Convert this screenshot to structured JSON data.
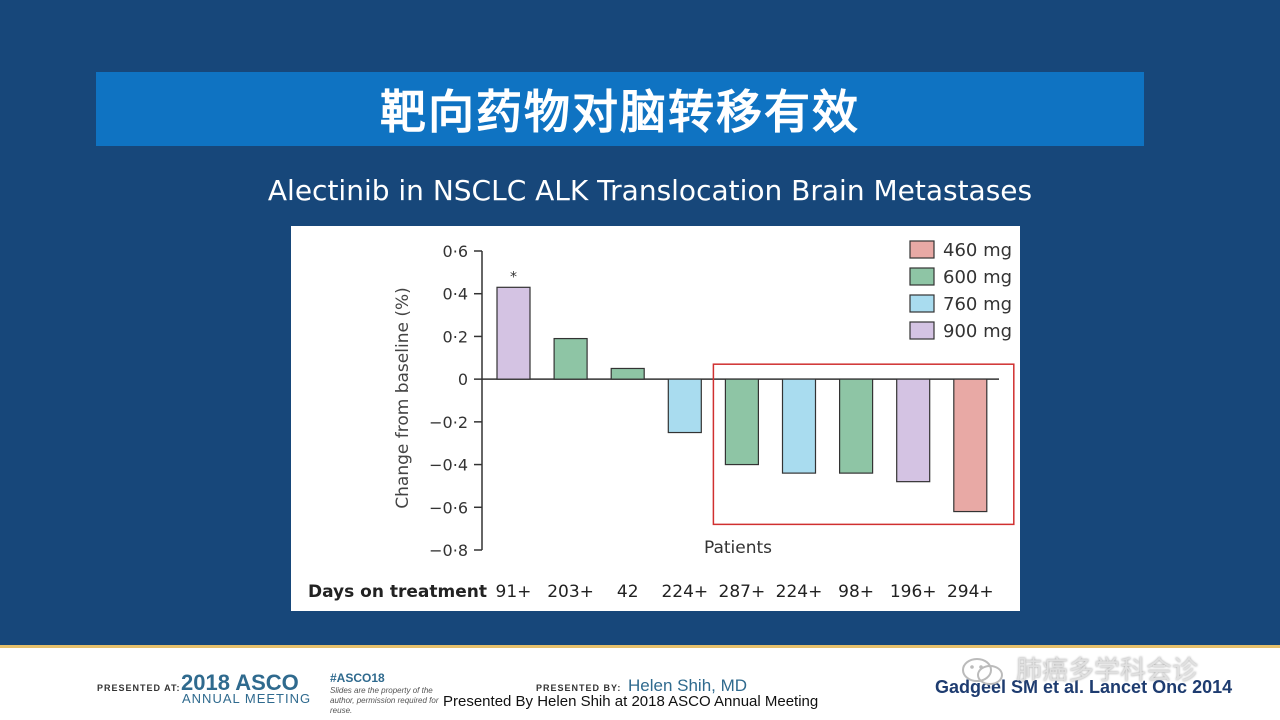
{
  "title": "靶向药物对脑转移有效",
  "subtitle": "Alectinib in NSCLC ALK Translocation Brain Metastases",
  "chart_data": {
    "type": "bar",
    "ylabel": "Change from baseline (%)",
    "xlabel": "Patients",
    "ylim": [
      -0.8,
      0.6
    ],
    "yticks": [
      "0·6",
      "0·4",
      "0·2",
      "0",
      "−0·2",
      "−0·4",
      "−0·6",
      "−0·8"
    ],
    "ytick_values": [
      0.6,
      0.4,
      0.2,
      0,
      -0.2,
      -0.4,
      -0.6,
      -0.8
    ],
    "values": [
      0.43,
      0.19,
      0.05,
      -0.25,
      -0.4,
      -0.44,
      -0.44,
      -0.48,
      -0.62
    ],
    "dose_group": [
      "900 mg",
      "600 mg",
      "600 mg",
      "760 mg",
      "600 mg",
      "760 mg",
      "600 mg",
      "900 mg",
      "460 mg"
    ],
    "days_label": "Days on treatment",
    "days": [
      "91+",
      "203+",
      "42",
      "224+",
      "287+",
      "224+",
      "98+",
      "196+",
      "294+"
    ],
    "annotation": "*",
    "legend": [
      {
        "name": "460 mg",
        "color": "#e8a9a5"
      },
      {
        "name": "600 mg",
        "color": "#8ec5a5"
      },
      {
        "name": "760 mg",
        "color": "#a9dcef"
      },
      {
        "name": "900 mg",
        "color": "#d4c3e3"
      }
    ],
    "highlight_color": "#d03030",
    "grid": false,
    "legend_position": "top-right"
  },
  "footer": {
    "presented_at": "PRESENTED AT:",
    "asco_year": "2018 ASCO",
    "asco_meeting": "ANNUAL MEETING",
    "hashtag": "#ASCO18",
    "slides_note": "Slides are the property of the author, permission required for reuse.",
    "presented_by": "PRESENTED BY:",
    "presenter": "Helen Shih, MD",
    "caption": "Presented By Helen Shih at 2018 ASCO Annual Meeting",
    "citation": "Gadgeel SM et al. Lancet Onc 2014",
    "watermark": "肺癌多学科会诊"
  }
}
